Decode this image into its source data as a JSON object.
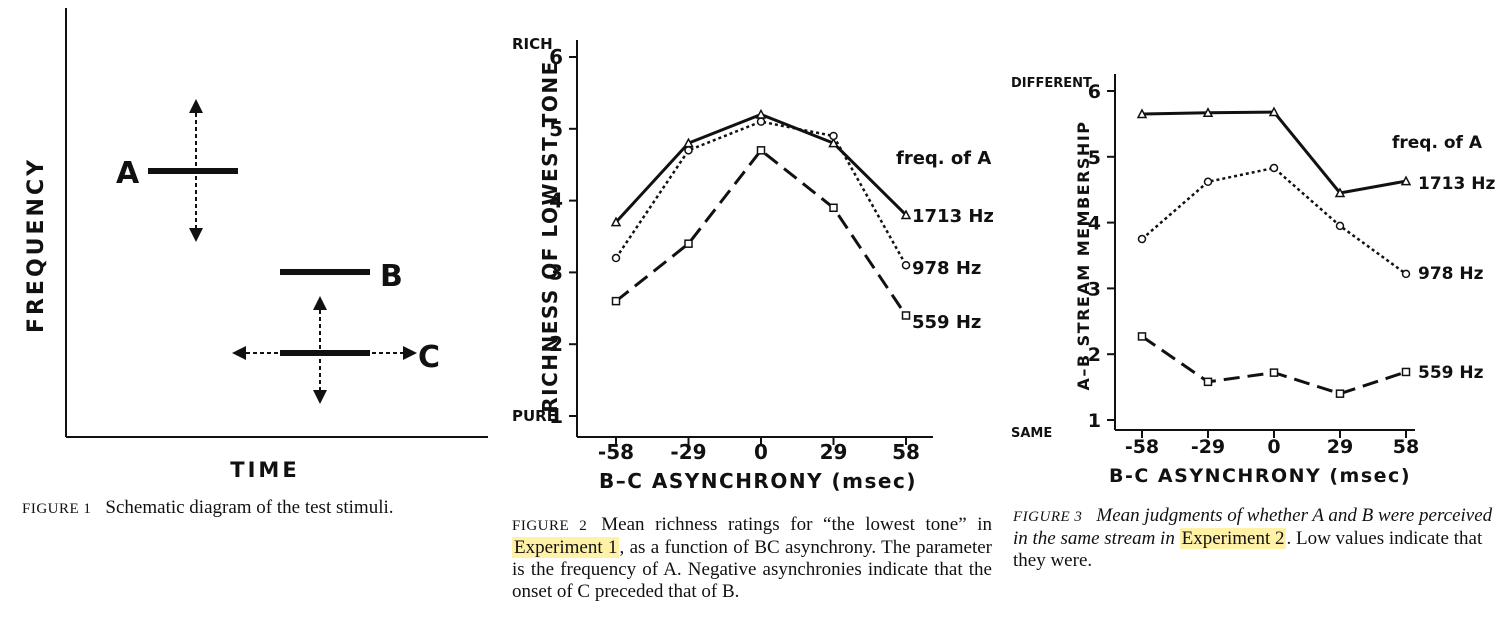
{
  "figure1": {
    "ylabel": "FREQUENCY",
    "xlabel": "TIME",
    "labels": {
      "a": "A",
      "b": "B",
      "c": "C"
    },
    "caption_label": "FIGURE 1",
    "caption_text": "Schematic diagram of the test stimuli."
  },
  "figure2": {
    "caption_label": "FIGURE 2",
    "caption_pre": "Mean richness ratings for “the lowest tone” in ",
    "caption_highlight": "Experiment 1",
    "caption_post": ", as a function of BC asynchrony. The parameter is the frequency of A. Negative asynchronies indicate that the onset of C preceded that of B."
  },
  "figure3": {
    "caption_label": "FIGURE 3",
    "caption_pre": "Mean judgments of whether A and B were perceived in the same stream in ",
    "caption_highlight": "Experiment 2",
    "caption_post": ". Low values indicate that they were."
  },
  "chart_data": [
    {
      "type": "line",
      "ylabel": "RICHNESS OF LOWEST TONE",
      "xlabel": "B–C ASYNCHRONY (msec)",
      "ylim": [
        1,
        6
      ],
      "yticks": [
        1,
        2,
        3,
        4,
        5,
        6
      ],
      "y_top_label": "RICH",
      "y_bottom_label": "PURE",
      "x": [
        "-58",
        "-29",
        "0",
        "29",
        "58"
      ],
      "legend_title": "freq. of A",
      "series": [
        {
          "name": "1713 Hz",
          "values": [
            3.7,
            4.8,
            5.2,
            4.8,
            3.8
          ]
        },
        {
          "name": "978 Hz",
          "values": [
            3.2,
            4.7,
            5.1,
            4.9,
            3.1
          ]
        },
        {
          "name": "559 Hz",
          "values": [
            2.6,
            3.4,
            4.7,
            3.9,
            2.4
          ]
        }
      ]
    },
    {
      "type": "line",
      "ylabel": "A–B STREAM MEMBERSHIP",
      "xlabel": "B-C ASYNCHRONY (msec)",
      "ylim": [
        1,
        6
      ],
      "yticks": [
        1,
        2,
        3,
        4,
        5,
        6
      ],
      "y_top_label": "DIFFERENT",
      "y_bottom_label": "SAME",
      "x": [
        "-58",
        "-29",
        "0",
        "29",
        "58"
      ],
      "legend_title": "freq. of A",
      "series": [
        {
          "name": "1713 Hz",
          "values": [
            5.65,
            5.67,
            5.68,
            4.45,
            4.63
          ]
        },
        {
          "name": "978 Hz",
          "values": [
            3.75,
            4.62,
            4.83,
            3.95,
            3.22
          ]
        },
        {
          "name": "559 Hz",
          "values": [
            2.27,
            1.58,
            1.72,
            1.4,
            1.73
          ]
        }
      ]
    }
  ]
}
